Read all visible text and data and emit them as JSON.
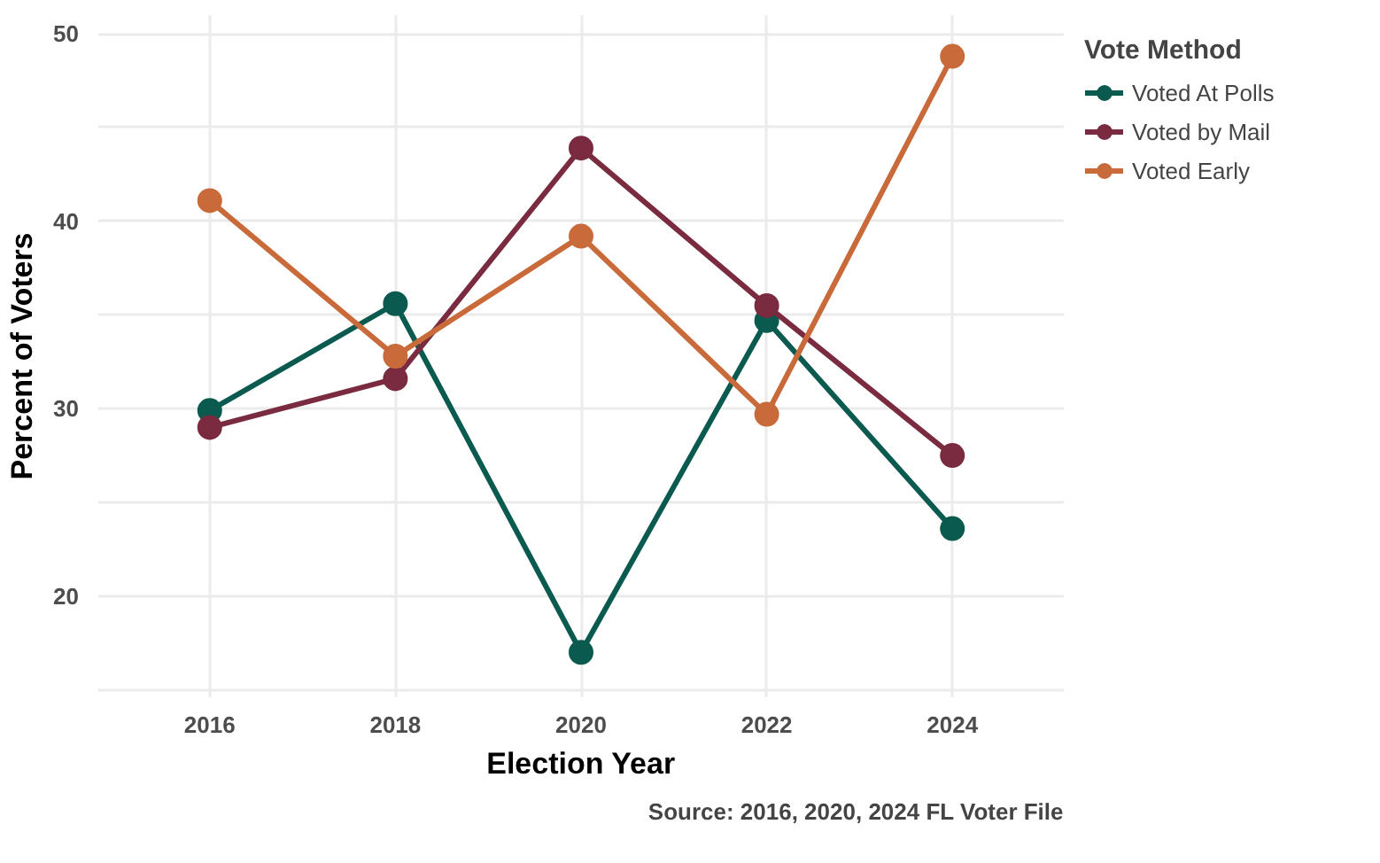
{
  "chart_data": {
    "type": "line",
    "xlabel": "Election Year",
    "ylabel": "Percent of Voters",
    "legend_title": "Vote Method",
    "x": [
      2016,
      2018,
      2020,
      2022,
      2024
    ],
    "series": [
      {
        "name": "Voted At Polls",
        "color": "#0b5a4f",
        "values": [
          29.9,
          35.6,
          17.0,
          34.7,
          23.6
        ]
      },
      {
        "name": "Voted by Mail",
        "color": "#7a2b40",
        "values": [
          29.0,
          31.6,
          43.9,
          35.5,
          27.5
        ]
      },
      {
        "name": "Voted Early",
        "color": "#c96a3a",
        "values": [
          41.1,
          32.8,
          39.2,
          29.7,
          48.8
        ]
      }
    ],
    "xlim": [
      2014.8,
      2025.2
    ],
    "ylim": [
      14.6,
      51
    ],
    "xticks": [
      2016,
      2018,
      2020,
      2022,
      2024
    ],
    "yticks": [
      {
        "value": 15,
        "label": null
      },
      20,
      {
        "value": 25,
        "label": null
      },
      30,
      {
        "value": 35,
        "label": null
      },
      40,
      {
        "value": 45,
        "label": null
      },
      50
    ],
    "grid": true,
    "legend": "right",
    "marker": "circle",
    "line_style": "solid",
    "annotations": [
      "Source: 2016, 2020, 2024 FL Voter File"
    ]
  }
}
